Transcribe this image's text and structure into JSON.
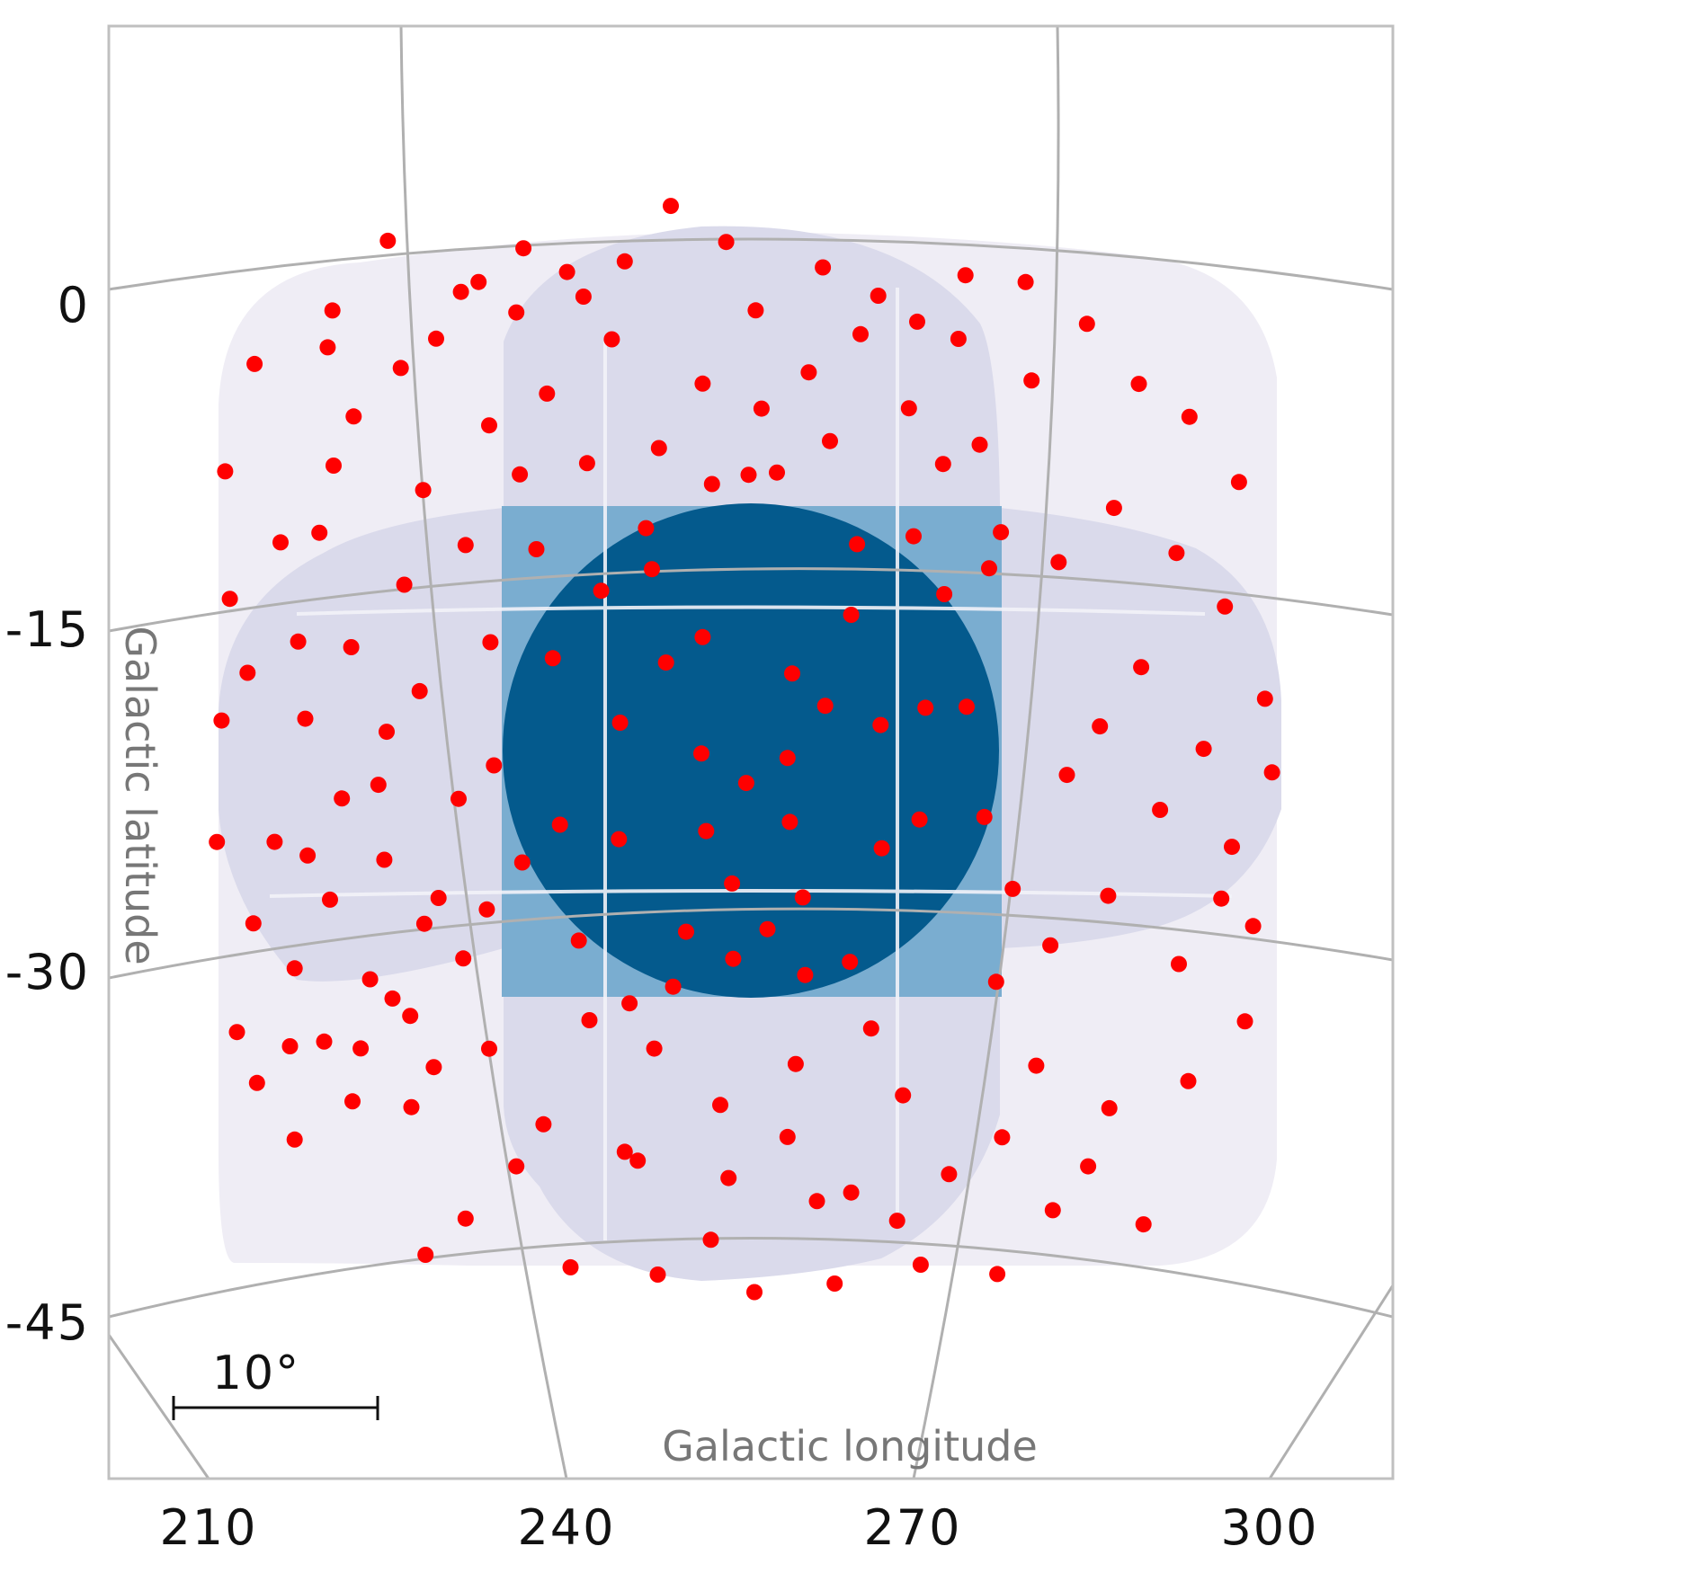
{
  "chart_data": {
    "type": "scatter",
    "projection": "gnomonic sky map",
    "xlabel": "Galactic longitude",
    "ylabel": "Galactic latitude",
    "x_ticks": [
      "210",
      "240",
      "270",
      "300"
    ],
    "y_ticks": [
      "0",
      "-15",
      "-30",
      "-45"
    ],
    "grid": true,
    "scale_bar": {
      "label": "10°",
      "length_deg": 10
    },
    "colors": {
      "points": "#ff0000",
      "coverage_outer": "#efedf5",
      "coverage_middle": "#dadaeb",
      "coverage_inner": "#7aadd0",
      "coverage_core": "#045a8d",
      "gridline": "#b0b0b0",
      "frame": "#c0c0c0"
    },
    "coverage_regions": [
      {
        "level": "outer",
        "color": "#efedf5"
      },
      {
        "level": "middle",
        "color": "#dadaeb"
      },
      {
        "level": "inner",
        "color": "#7aadd0"
      },
      {
        "level": "core",
        "color": "#045a8d"
      }
    ],
    "series": [
      {
        "color": "#ff0000",
        "points": [
          [
            255.8,
            -9.3
          ],
          [
            265,
            -12.3
          ],
          [
            259.5,
            -18
          ],
          [
            267,
            -20.2
          ],
          [
            248.8,
            -17.5
          ],
          [
            251.8,
            -21.5
          ],
          [
            255.6,
            -22.8
          ],
          [
            252.2,
            -24.9
          ],
          [
            259.3,
            -24.5
          ],
          [
            254.4,
            -27.2
          ],
          [
            250.5,
            -29.3
          ],
          [
            249.4,
            -31.7
          ],
          [
            254.5,
            -30.5
          ],
          [
            260.4,
            -27.8
          ],
          [
            244.8,
            -25.2
          ],
          [
            239.8,
            -24.5
          ],
          [
            262.3,
            -19.4
          ],
          [
            267.1,
            -25.6
          ],
          [
            257.4,
            -29.2
          ],
          [
            264.4,
            -30.6
          ],
          [
            270.3,
            -24.3
          ],
          [
            270.8,
            -19.4
          ],
          [
            247.6,
            -13.4
          ],
          [
            243.3,
            -14.3
          ],
          [
            236.6,
            -26.1
          ],
          [
            264.5,
            -15.4
          ],
          [
            251.9,
            -16.4
          ],
          [
            259.1,
            -21.7
          ],
          [
            244.9,
            -20.1
          ],
          [
            260.6,
            -31.2
          ],
          [
            233.8,
            -6.9
          ],
          [
            228.2,
            -9.6
          ],
          [
            220.6,
            -8.3
          ],
          [
            216.1,
            -11.5
          ],
          [
            213.3,
            -17.1
          ],
          [
            218.2,
            -19.3
          ],
          [
            215.6,
            -24.6
          ],
          [
            220.3,
            -27.3
          ],
          [
            224.4,
            -22.4
          ],
          [
            227.9,
            -18.4
          ],
          [
            231.2,
            -23.2
          ],
          [
            226.6,
            -13.7
          ],
          [
            231.8,
            -12.1
          ],
          [
            213.8,
            -28.1
          ],
          [
            217.3,
            -30.2
          ],
          [
            223.7,
            -30.9
          ],
          [
            229.5,
            -27.5
          ],
          [
            219.8,
            -33.5
          ],
          [
            229.1,
            -34.9
          ],
          [
            222.2,
            -36.2
          ],
          [
            227.2,
            -36.6
          ],
          [
            225.6,
            -31.8
          ],
          [
            214.1,
            -35.1
          ],
          [
            220.1,
            -3.1
          ],
          [
            226.3,
            -4.2
          ],
          [
            231.4,
            -1
          ],
          [
            236.1,
            -2
          ],
          [
            225.2,
            1.4
          ],
          [
            220.5,
            -1.5
          ],
          [
            229.3,
            -3
          ],
          [
            244.2,
            -3.3
          ],
          [
            248.2,
            -8.1
          ],
          [
            251.9,
            -5.3
          ],
          [
            256.4,
            -2.1
          ],
          [
            260.9,
            -4.8
          ],
          [
            265.3,
            -3.1
          ],
          [
            269.4,
            -6.3
          ],
          [
            272.3,
            -8.7
          ],
          [
            266.8,
            -1.4
          ],
          [
            262.1,
            -0.2
          ],
          [
            253.9,
            0.9
          ],
          [
            249.2,
            2.5
          ],
          [
            241.8,
            -1.4
          ],
          [
            238.7,
            -5.6
          ],
          [
            279.3,
            -0.6
          ],
          [
            284.5,
            -2.3
          ],
          [
            288.9,
            -4.8
          ],
          [
            293.2,
            -6.1
          ],
          [
            297.4,
            -8.8
          ],
          [
            286.8,
            -10.3
          ],
          [
            282.1,
            -12.8
          ],
          [
            277.2,
            -11.6
          ],
          [
            275.4,
            -7.8
          ],
          [
            279.8,
            -4.9
          ],
          [
            292.1,
            -12.1
          ],
          [
            296.2,
            -14.3
          ],
          [
            299.6,
            -18.2
          ],
          [
            294.4,
            -20.6
          ],
          [
            289.1,
            -17.2
          ],
          [
            285.6,
            -19.9
          ],
          [
            282.8,
            -22.1
          ],
          [
            290.7,
            -23.4
          ],
          [
            296.8,
            -24.8
          ],
          [
            300.2,
            -21.4
          ],
          [
            286.3,
            -27.3
          ],
          [
            281.4,
            -29.6
          ],
          [
            276.8,
            -31.3
          ],
          [
            292.3,
            -30.1
          ],
          [
            295.9,
            -27.1
          ],
          [
            298.6,
            -28.2
          ],
          [
            280.2,
            -34.9
          ],
          [
            286.4,
            -36.6
          ],
          [
            293.1,
            -35.2
          ],
          [
            297.9,
            -32.4
          ],
          [
            284.6,
            -39.2
          ],
          [
            277.3,
            -38.1
          ],
          [
            289.3,
            -41.6
          ],
          [
            281.6,
            -41.2
          ],
          [
            238.4,
            -37.6
          ],
          [
            233.8,
            -34.2
          ],
          [
            246.4,
            -39.3
          ],
          [
            252.6,
            -42.8
          ],
          [
            259.1,
            -38.3
          ],
          [
            264.5,
            -40.7
          ],
          [
            268.9,
            -36.4
          ],
          [
            272.8,
            -39.8
          ],
          [
            266.2,
            -33.5
          ],
          [
            259.8,
            -35.1
          ],
          [
            253.4,
            -36.9
          ],
          [
            247.8,
            -34.4
          ],
          [
            242.3,
            -33.1
          ],
          [
            236.1,
            -39.4
          ],
          [
            231.8,
            -41.6
          ],
          [
            228.4,
            -43.1
          ],
          [
            240.7,
            -43.9
          ],
          [
            248.1,
            -44.3
          ],
          [
            256.3,
            -45.1
          ],
          [
            263.1,
            -44.7
          ],
          [
            270.4,
            -43.8
          ],
          [
            276.9,
            -44.1
          ],
          [
            217.3,
            -37.7
          ],
          [
            212.4,
            -32.8
          ],
          [
            210.7,
            -24.4
          ],
          [
            211.1,
            -19.1
          ],
          [
            211.8,
            -13.8
          ],
          [
            211.4,
            -8.2
          ],
          [
            213.9,
            -3.6
          ],
          [
            274.3,
            -19.3
          ],
          [
            275.8,
            -24.1
          ],
          [
            278.2,
            -27.2
          ],
          [
            276.2,
            -13.2
          ],
          [
            239.2,
            -17.2
          ],
          [
            237.8,
            -12.4
          ],
          [
            236.4,
            -9.1
          ],
          [
            242.1,
            -8.7
          ],
          [
            233.9,
            -16.4
          ],
          [
            234.2,
            -21.8
          ],
          [
            233.6,
            -28.1
          ],
          [
            241.4,
            -29.6
          ],
          [
            245.7,
            -32.4
          ],
          [
            245.3,
            -38.9
          ],
          [
            254.1,
            -40.1
          ],
          [
            261.6,
            -41.1
          ],
          [
            268.4,
            -41.9
          ],
          [
            258.2,
            -9.2
          ],
          [
            252.7,
            -9.7
          ],
          [
            247.1,
            -11.6
          ],
          [
            272.4,
            -14.4
          ],
          [
            269.8,
            -11.9
          ],
          [
            262.7,
            -7.8
          ],
          [
            256.9,
            -6.4
          ],
          [
            270.1,
            -2.5
          ],
          [
            273.6,
            -3.2
          ],
          [
            274.2,
            -0.4
          ],
          [
            245.3,
            0.1
          ],
          [
            240.4,
            -0.3
          ],
          [
            236.7,
            0.8
          ],
          [
            232.9,
            -0.6
          ],
          [
            222.3,
            -6.2
          ],
          [
            219.4,
            -11.2
          ],
          [
            217.6,
            -15.9
          ],
          [
            222.1,
            -16.3
          ],
          [
            225.1,
            -20.1
          ],
          [
            221.3,
            -22.9
          ],
          [
            218.4,
            -25.3
          ],
          [
            224.9,
            -25.7
          ],
          [
            228.3,
            -28.6
          ],
          [
            231.6,
            -30.2
          ],
          [
            227.1,
            -32.6
          ],
          [
            222.9,
            -33.9
          ],
          [
            216.9,
            -33.6
          ]
        ]
      }
    ]
  }
}
